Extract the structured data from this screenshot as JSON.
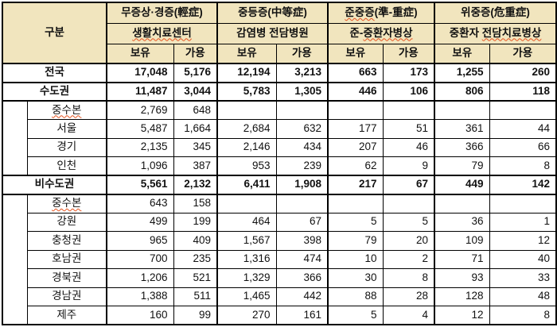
{
  "table": {
    "category_header": "구분",
    "col_headers": {
      "held_label": "보유",
      "available_label": "가용",
      "groups": [
        {
          "severity_parts": [
            {
              "text": "무증상·경증(輕症)",
              "squiggle": false
            }
          ],
          "facility_parts": [
            {
              "text": "생활치료센터",
              "squiggle": true
            }
          ]
        },
        {
          "severity_parts": [
            {
              "text": "중등증(中等症)",
              "squiggle": false
            }
          ],
          "facility_parts": [
            {
              "text": "감염병 전담병원",
              "squiggle": false
            }
          ]
        },
        {
          "severity_parts": [
            {
              "text": "준중증",
              "squiggle": true
            },
            {
              "text": "(準-重症)",
              "squiggle": false
            }
          ],
          "facility_parts": [
            {
              "text": "준-",
              "squiggle": false
            },
            {
              "text": "중환자병상",
              "squiggle": true
            }
          ]
        },
        {
          "severity_parts": [
            {
              "text": "위중증(危重症)",
              "squiggle": false
            }
          ],
          "facility_parts": [
            {
              "text": "중환자 ",
              "squiggle": false
            },
            {
              "text": "전담치료병상",
              "squiggle": true
            }
          ]
        }
      ]
    },
    "rows": [
      {
        "label": "전국",
        "type": "total",
        "bold": true,
        "label_squiggle": false,
        "values": [
          "17,048",
          "5,176",
          "12,194",
          "3,213",
          "663",
          "173",
          "1,255",
          "260"
        ]
      },
      {
        "label": "수도권",
        "type": "section",
        "bold": true,
        "label_squiggle": false,
        "values": [
          "11,487",
          "3,044",
          "5,783",
          "1,305",
          "446",
          "106",
          "806",
          "118"
        ]
      },
      {
        "label": "중수본",
        "type": "sub",
        "bold": false,
        "label_squiggle": true,
        "section_rowspan": 4,
        "values": [
          "2,769",
          "648",
          "",
          "",
          "",
          "",
          "",
          ""
        ]
      },
      {
        "label": "서울",
        "type": "sub",
        "bold": false,
        "label_squiggle": false,
        "values": [
          "5,487",
          "1,664",
          "2,684",
          "632",
          "177",
          "51",
          "361",
          "44"
        ]
      },
      {
        "label": "경기",
        "type": "sub",
        "bold": false,
        "label_squiggle": false,
        "values": [
          "2,135",
          "345",
          "2,146",
          "434",
          "207",
          "46",
          "366",
          "66"
        ]
      },
      {
        "label": "인천",
        "type": "sub",
        "bold": false,
        "label_squiggle": false,
        "values": [
          "1,096",
          "387",
          "953",
          "239",
          "62",
          "9",
          "79",
          "8"
        ]
      },
      {
        "label": "비수도권",
        "type": "section",
        "bold": true,
        "label_squiggle": false,
        "values": [
          "5,561",
          "2,132",
          "6,411",
          "1,908",
          "217",
          "67",
          "449",
          "142"
        ]
      },
      {
        "label": "중수본",
        "type": "sub",
        "bold": false,
        "label_squiggle": true,
        "section_rowspan": 7,
        "values": [
          "643",
          "158",
          "",
          "",
          "",
          "",
          "",
          ""
        ]
      },
      {
        "label": "강원",
        "type": "sub",
        "bold": false,
        "label_squiggle": false,
        "values": [
          "499",
          "199",
          "464",
          "67",
          "5",
          "5",
          "36",
          "1"
        ]
      },
      {
        "label": "충청권",
        "type": "sub",
        "bold": false,
        "label_squiggle": false,
        "values": [
          "965",
          "409",
          "1,567",
          "398",
          "79",
          "20",
          "109",
          "12"
        ]
      },
      {
        "label": "호남권",
        "type": "sub",
        "bold": false,
        "label_squiggle": false,
        "values": [
          "700",
          "235",
          "1,316",
          "474",
          "10",
          "2",
          "71",
          "40"
        ]
      },
      {
        "label": "경북권",
        "type": "sub",
        "bold": false,
        "label_squiggle": false,
        "values": [
          "1,206",
          "521",
          "1,329",
          "366",
          "30",
          "8",
          "93",
          "33"
        ]
      },
      {
        "label": "경남권",
        "type": "sub",
        "bold": false,
        "label_squiggle": false,
        "values": [
          "1,388",
          "511",
          "1,465",
          "442",
          "88",
          "28",
          "128",
          "48"
        ]
      },
      {
        "label": "제주",
        "type": "sub",
        "bold": false,
        "label_squiggle": false,
        "values": [
          "160",
          "99",
          "270",
          "161",
          "5",
          "4",
          "12",
          "8"
        ]
      }
    ],
    "colors": {
      "header_bg": "#f1e5be",
      "border": "#000000",
      "squiggle": "#e6531f",
      "text": "#111111"
    }
  }
}
